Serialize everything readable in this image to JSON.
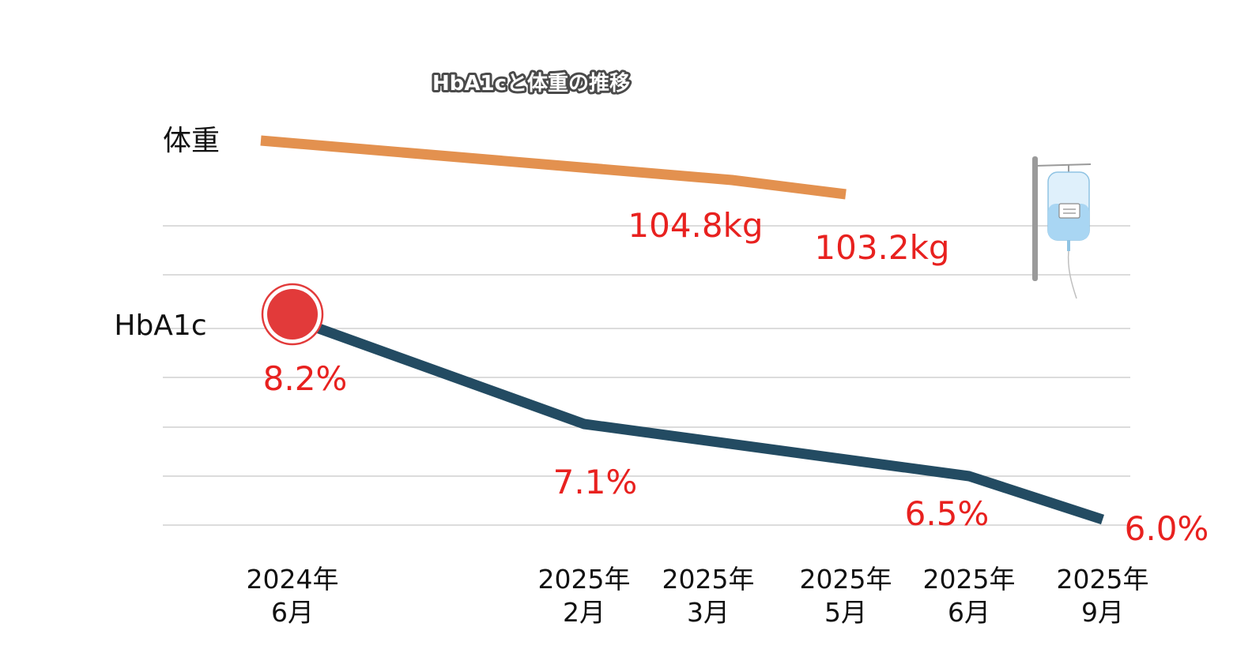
{
  "chart_data": {
    "type": "line",
    "title": "HbA1cと体重の推移",
    "categories": [
      "2024年\n6月",
      "2025年\n2月",
      "2025年\n3月",
      "2025年\n5月",
      "2025年\n6月",
      "2025年\n9月"
    ],
    "grid": true,
    "legend": "none",
    "series": [
      {
        "name": "体重",
        "unit": "kg",
        "x": [
          "2024年\n6月",
          "2025年\n3月",
          "2025年\n5月"
        ],
        "values": [
          null,
          104.8,
          103.2
        ],
        "labels": [
          "104.8kg",
          "103.2kg"
        ],
        "color": "#E3914F"
      },
      {
        "name": "HbA1c",
        "unit": "%",
        "x": [
          "2024年\n6月",
          "2025年\n2月",
          "2025年\n6月",
          "2025年\n9月"
        ],
        "values": [
          8.2,
          7.1,
          6.5,
          6.0
        ],
        "labels": [
          "8.2%",
          "7.1%",
          "6.5%",
          "6.0%"
        ],
        "color": "#234B62"
      }
    ],
    "label_color": "#E8211F",
    "marker_color": "#E23A3A",
    "icon": "iv-drip-icon"
  }
}
